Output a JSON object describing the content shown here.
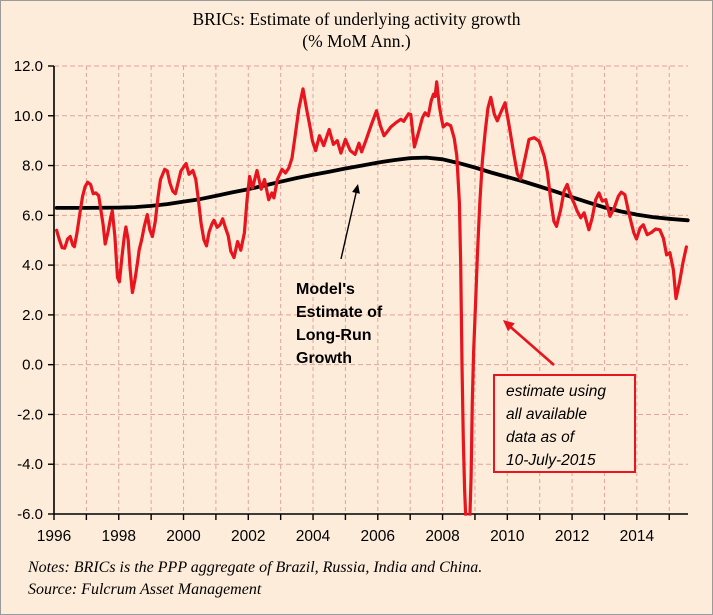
{
  "title": {
    "line1": "BRICs: Estimate of underlying activity growth",
    "line2": "(% MoM Ann.)"
  },
  "annotations": {
    "model_estimate": "Model's\nEstimate of\nLong-Run\nGrowth",
    "estimate_box": "estimate using\nall available\ndata as of\n10-July-2015"
  },
  "footer": {
    "notes": "Notes: BRICs is the PPP aggregate of Brazil, Russia, India and China.",
    "source": "Source: Fulcrum Asset Management"
  },
  "colors": {
    "background": "#fdecd9",
    "line_red": "#e8141e",
    "line_black": "#000000",
    "grid_pink": "#e2a49b",
    "axis_black": "#000000",
    "frame_border": "#9a9a9a"
  },
  "chart_data": {
    "type": "line",
    "title": "BRICs: Estimate of underlying activity growth (% MoM Ann.)",
    "xlabel": "",
    "ylabel": "",
    "x_domain": [
      1996,
      2015.58
    ],
    "y_domain": [
      -6,
      12
    ],
    "grid": "dashed pink; vertical every year, horizontal every 2 units",
    "legend_position": "none (in-plot text annotations with arrows)",
    "y_ticks": {
      "values": [
        12,
        10,
        8,
        6,
        4,
        2,
        0,
        -2,
        -4,
        -6
      ],
      "labels": [
        "12.0",
        "10.0",
        "8.0",
        "6.0",
        "4.0",
        "2.0",
        "0.0",
        "-2.0",
        "-4.0",
        "-6.0"
      ]
    },
    "x_ticks": {
      "label_years": [
        1996,
        1998,
        2000,
        2002,
        2004,
        2006,
        2008,
        2010,
        2012,
        2014
      ],
      "labels": [
        "1996",
        "1998",
        "2000",
        "2002",
        "2004",
        "2006",
        "2008",
        "2010",
        "2012",
        "2014"
      ],
      "minor_tick_start": 1996,
      "minor_tick_end": 2015
    },
    "series": [
      {
        "name": "Model's Estimate of Long-Run Growth",
        "color": "#000000",
        "width": 3.8,
        "points": [
          [
            1996.08,
            6.3
          ],
          [
            1997.0,
            6.3
          ],
          [
            1998.0,
            6.31
          ],
          [
            1998.5,
            6.33
          ],
          [
            1999.0,
            6.38
          ],
          [
            1999.5,
            6.45
          ],
          [
            2000.0,
            6.55
          ],
          [
            2000.5,
            6.65
          ],
          [
            2001.0,
            6.78
          ],
          [
            2001.5,
            6.92
          ],
          [
            2002.0,
            7.05
          ],
          [
            2002.5,
            7.2
          ],
          [
            2003.0,
            7.35
          ],
          [
            2003.5,
            7.5
          ],
          [
            2004.0,
            7.63
          ],
          [
            2004.5,
            7.75
          ],
          [
            2005.0,
            7.88
          ],
          [
            2005.5,
            8.0
          ],
          [
            2006.0,
            8.12
          ],
          [
            2006.5,
            8.22
          ],
          [
            2007.0,
            8.3
          ],
          [
            2007.5,
            8.32
          ],
          [
            2008.0,
            8.25
          ],
          [
            2008.5,
            8.1
          ],
          [
            2009.0,
            7.92
          ],
          [
            2009.5,
            7.72
          ],
          [
            2010.0,
            7.54
          ],
          [
            2010.5,
            7.36
          ],
          [
            2011.0,
            7.16
          ],
          [
            2011.5,
            6.95
          ],
          [
            2012.0,
            6.73
          ],
          [
            2012.5,
            6.52
          ],
          [
            2013.0,
            6.32
          ],
          [
            2013.5,
            6.16
          ],
          [
            2014.0,
            6.03
          ],
          [
            2014.5,
            5.93
          ],
          [
            2015.0,
            5.86
          ],
          [
            2015.57,
            5.8
          ]
        ]
      },
      {
        "name": "estimate using all available data as of 10-July-2015",
        "color": "#e8141e",
        "width": 3.2,
        "points": [
          [
            1996.08,
            5.4
          ],
          [
            1996.17,
            5.0
          ],
          [
            1996.25,
            4.7
          ],
          [
            1996.33,
            4.68
          ],
          [
            1996.42,
            5.05
          ],
          [
            1996.5,
            5.15
          ],
          [
            1996.58,
            4.8
          ],
          [
            1996.63,
            4.74
          ],
          [
            1996.71,
            5.3
          ],
          [
            1996.79,
            6.0
          ],
          [
            1996.88,
            6.75
          ],
          [
            1996.96,
            7.15
          ],
          [
            1997.04,
            7.33
          ],
          [
            1997.13,
            7.24
          ],
          [
            1997.21,
            6.87
          ],
          [
            1997.29,
            6.9
          ],
          [
            1997.38,
            6.79
          ],
          [
            1997.46,
            6.1
          ],
          [
            1997.52,
            5.6
          ],
          [
            1997.58,
            4.85
          ],
          [
            1997.67,
            5.35
          ],
          [
            1997.75,
            5.92
          ],
          [
            1997.8,
            6.18
          ],
          [
            1997.88,
            5.15
          ],
          [
            1997.96,
            3.5
          ],
          [
            1998.02,
            3.33
          ],
          [
            1998.1,
            4.35
          ],
          [
            1998.17,
            5.15
          ],
          [
            1998.22,
            5.53
          ],
          [
            1998.29,
            5.0
          ],
          [
            1998.35,
            3.85
          ],
          [
            1998.42,
            2.9
          ],
          [
            1998.5,
            3.4
          ],
          [
            1998.58,
            4.1
          ],
          [
            1998.63,
            4.62
          ],
          [
            1998.71,
            5.02
          ],
          [
            1998.79,
            5.56
          ],
          [
            1998.88,
            6.03
          ],
          [
            1998.96,
            5.42
          ],
          [
            1999.04,
            5.15
          ],
          [
            1999.13,
            5.76
          ],
          [
            1999.21,
            6.7
          ],
          [
            1999.29,
            7.44
          ],
          [
            1999.42,
            7.85
          ],
          [
            1999.5,
            7.78
          ],
          [
            1999.58,
            7.3
          ],
          [
            1999.67,
            6.97
          ],
          [
            1999.75,
            6.87
          ],
          [
            1999.83,
            7.3
          ],
          [
            1999.92,
            7.78
          ],
          [
            2000.08,
            8.08
          ],
          [
            2000.17,
            7.65
          ],
          [
            2000.29,
            7.8
          ],
          [
            2000.38,
            7.44
          ],
          [
            2000.46,
            6.63
          ],
          [
            2000.54,
            5.7
          ],
          [
            2000.63,
            5.02
          ],
          [
            2000.71,
            4.77
          ],
          [
            2000.79,
            5.33
          ],
          [
            2000.88,
            5.66
          ],
          [
            2000.94,
            5.8
          ],
          [
            2001.04,
            5.52
          ],
          [
            2001.13,
            5.62
          ],
          [
            2001.21,
            5.86
          ],
          [
            2001.29,
            5.52
          ],
          [
            2001.38,
            5.18
          ],
          [
            2001.46,
            4.56
          ],
          [
            2001.56,
            4.3
          ],
          [
            2001.67,
            4.95
          ],
          [
            2001.77,
            4.6
          ],
          [
            2001.88,
            5.3
          ],
          [
            2001.96,
            6.6
          ],
          [
            2002.04,
            7.56
          ],
          [
            2002.13,
            7.1
          ],
          [
            2002.27,
            7.8
          ],
          [
            2002.4,
            7.05
          ],
          [
            2002.5,
            7.44
          ],
          [
            2002.63,
            6.63
          ],
          [
            2002.73,
            6.9
          ],
          [
            2002.79,
            6.7
          ],
          [
            2002.9,
            7.44
          ],
          [
            2003.04,
            7.85
          ],
          [
            2003.15,
            7.7
          ],
          [
            2003.25,
            7.9
          ],
          [
            2003.35,
            8.3
          ],
          [
            2003.46,
            9.33
          ],
          [
            2003.56,
            10.27
          ],
          [
            2003.69,
            11.08
          ],
          [
            2003.81,
            10.2
          ],
          [
            2003.9,
            9.6
          ],
          [
            2003.98,
            9.0
          ],
          [
            2004.08,
            8.6
          ],
          [
            2004.2,
            9.2
          ],
          [
            2004.33,
            8.8
          ],
          [
            2004.5,
            9.45
          ],
          [
            2004.63,
            8.85
          ],
          [
            2004.75,
            9.0
          ],
          [
            2004.86,
            8.5
          ],
          [
            2005.0,
            9.05
          ],
          [
            2005.15,
            8.6
          ],
          [
            2005.3,
            8.45
          ],
          [
            2005.42,
            8.9
          ],
          [
            2005.5,
            8.55
          ],
          [
            2005.63,
            9.0
          ],
          [
            2005.79,
            9.6
          ],
          [
            2005.96,
            10.2
          ],
          [
            2006.08,
            9.6
          ],
          [
            2006.19,
            9.2
          ],
          [
            2006.27,
            9.32
          ],
          [
            2006.4,
            9.55
          ],
          [
            2006.56,
            9.72
          ],
          [
            2006.71,
            9.86
          ],
          [
            2006.8,
            9.78
          ],
          [
            2006.95,
            10.08
          ],
          [
            2007.02,
            10.05
          ],
          [
            2007.13,
            8.75
          ],
          [
            2007.25,
            9.3
          ],
          [
            2007.38,
            9.93
          ],
          [
            2007.46,
            10.12
          ],
          [
            2007.56,
            10.0
          ],
          [
            2007.65,
            10.6
          ],
          [
            2007.72,
            10.87
          ],
          [
            2007.77,
            10.78
          ],
          [
            2007.82,
            11.36
          ],
          [
            2007.9,
            10.4
          ],
          [
            2007.96,
            9.93
          ],
          [
            2008.02,
            9.55
          ],
          [
            2008.13,
            9.68
          ],
          [
            2008.25,
            9.6
          ],
          [
            2008.36,
            9.1
          ],
          [
            2008.44,
            8.4
          ],
          [
            2008.52,
            6.5
          ],
          [
            2008.56,
            4.0
          ],
          [
            2008.6,
            0.0
          ],
          [
            2008.64,
            -3.0
          ],
          [
            2008.68,
            -5.0
          ],
          [
            2008.72,
            -6.3
          ],
          [
            2008.78,
            -6.6
          ],
          [
            2008.84,
            -6.2
          ],
          [
            2008.88,
            -4.5
          ],
          [
            2008.92,
            -1.5
          ],
          [
            2008.96,
            0.5
          ],
          [
            2009.02,
            2.5
          ],
          [
            2009.08,
            4.5
          ],
          [
            2009.15,
            6.5
          ],
          [
            2009.23,
            8.2
          ],
          [
            2009.32,
            9.4
          ],
          [
            2009.4,
            10.3
          ],
          [
            2009.49,
            10.74
          ],
          [
            2009.6,
            10.05
          ],
          [
            2009.69,
            9.8
          ],
          [
            2009.82,
            10.2
          ],
          [
            2009.93,
            10.52
          ],
          [
            2010.05,
            9.66
          ],
          [
            2010.21,
            8.4
          ],
          [
            2010.31,
            7.66
          ],
          [
            2010.41,
            7.46
          ],
          [
            2010.55,
            8.3
          ],
          [
            2010.67,
            9.05
          ],
          [
            2010.83,
            9.12
          ],
          [
            2010.98,
            8.98
          ],
          [
            2011.14,
            8.38
          ],
          [
            2011.24,
            7.71
          ],
          [
            2011.34,
            6.63
          ],
          [
            2011.44,
            5.76
          ],
          [
            2011.52,
            5.56
          ],
          [
            2011.65,
            6.23
          ],
          [
            2011.75,
            6.97
          ],
          [
            2011.85,
            7.24
          ],
          [
            2011.96,
            6.77
          ],
          [
            2012.06,
            6.5
          ],
          [
            2012.16,
            6.16
          ],
          [
            2012.27,
            5.9
          ],
          [
            2012.37,
            6.1
          ],
          [
            2012.52,
            5.42
          ],
          [
            2012.62,
            5.9
          ],
          [
            2012.73,
            6.63
          ],
          [
            2012.83,
            6.9
          ],
          [
            2012.93,
            6.57
          ],
          [
            2013.04,
            6.63
          ],
          [
            2013.17,
            5.96
          ],
          [
            2013.3,
            6.3
          ],
          [
            2013.43,
            6.77
          ],
          [
            2013.52,
            6.93
          ],
          [
            2013.63,
            6.83
          ],
          [
            2013.73,
            6.23
          ],
          [
            2013.83,
            5.69
          ],
          [
            2013.91,
            5.29
          ],
          [
            2013.99,
            5.05
          ],
          [
            2014.1,
            5.49
          ],
          [
            2014.2,
            5.62
          ],
          [
            2014.32,
            5.22
          ],
          [
            2014.45,
            5.31
          ],
          [
            2014.58,
            5.45
          ],
          [
            2014.71,
            5.42
          ],
          [
            2014.82,
            5.08
          ],
          [
            2014.92,
            4.41
          ],
          [
            2015.02,
            4.5
          ],
          [
            2015.13,
            3.8
          ],
          [
            2015.21,
            2.66
          ],
          [
            2015.32,
            3.33
          ],
          [
            2015.43,
            4.13
          ],
          [
            2015.53,
            4.73
          ]
        ]
      }
    ]
  }
}
